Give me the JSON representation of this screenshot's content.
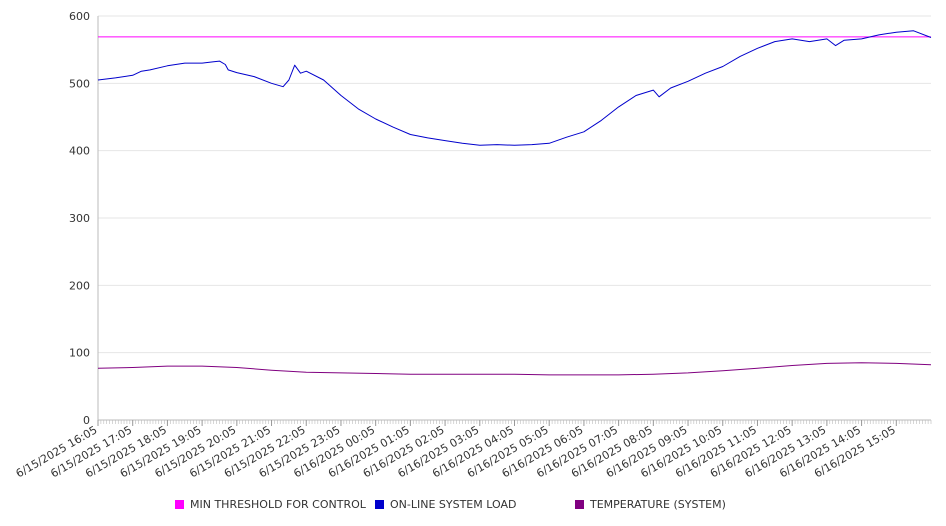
{
  "chart_data": {
    "type": "line",
    "title": "",
    "xlabel": "",
    "ylabel": "",
    "ylim": [
      0,
      600
    ],
    "yticks": [
      0,
      100,
      200,
      300,
      400,
      500,
      600
    ],
    "grid": true,
    "legend_position": "bottom",
    "x_tick_labels": [
      "6/15/2025 16:05",
      "6/15/2025 17:05",
      "6/15/2025 18:05",
      "6/15/2025 19:05",
      "6/15/2025 20:05",
      "6/15/2025 21:05",
      "6/15/2025 22:05",
      "6/15/2025 23:05",
      "6/16/2025 00:05",
      "6/16/2025 01:05",
      "6/16/2025 02:05",
      "6/16/2025 03:05",
      "6/16/2025 04:05",
      "6/16/2025 05:05",
      "6/16/2025 06:05",
      "6/16/2025 07:05",
      "6/16/2025 08:05",
      "6/16/2025 09:05",
      "6/16/2025 10:05",
      "6/16/2025 11:05",
      "6/16/2025 12:05",
      "6/16/2025 13:05",
      "6/16/2025 14:05",
      "6/16/2025 15:05"
    ],
    "x_range": [
      "6/15/2025 16:05",
      "6/16/2025 16:05"
    ],
    "series": [
      {
        "name": "MIN THRESHOLD FOR CONTROL",
        "color": "#ff00ff",
        "points": [
          [
            "6/15/2025 16:05",
            569
          ],
          [
            "6/16/2025 16:05",
            569
          ]
        ]
      },
      {
        "name": "ON-LINE SYSTEM LOAD",
        "color": "#0000cc",
        "points": [
          [
            "6/15/2025 16:05",
            505
          ],
          [
            "6/15/2025 16:35",
            508
          ],
          [
            "6/15/2025 17:05",
            512
          ],
          [
            "6/15/2025 17:20",
            518
          ],
          [
            "6/15/2025 17:35",
            520
          ],
          [
            "6/15/2025 18:05",
            526
          ],
          [
            "6/15/2025 18:35",
            530
          ],
          [
            "6/15/2025 19:05",
            530
          ],
          [
            "6/15/2025 19:25",
            532
          ],
          [
            "6/15/2025 19:35",
            533
          ],
          [
            "6/15/2025 19:45",
            528
          ],
          [
            "6/15/2025 19:50",
            520
          ],
          [
            "6/15/2025 20:05",
            516
          ],
          [
            "6/15/2025 20:35",
            510
          ],
          [
            "6/15/2025 21:05",
            500
          ],
          [
            "6/15/2025 21:25",
            495
          ],
          [
            "6/15/2025 21:35",
            505
          ],
          [
            "6/15/2025 21:45",
            527
          ],
          [
            "6/15/2025 21:55",
            515
          ],
          [
            "6/15/2025 22:05",
            518
          ],
          [
            "6/15/2025 22:35",
            505
          ],
          [
            "6/15/2025 23:05",
            482
          ],
          [
            "6/15/2025 23:35",
            462
          ],
          [
            "6/16/2025 00:05",
            447
          ],
          [
            "6/16/2025 00:35",
            435
          ],
          [
            "6/16/2025 01:05",
            424
          ],
          [
            "6/16/2025 01:35",
            419
          ],
          [
            "6/16/2025 02:05",
            415
          ],
          [
            "6/16/2025 02:35",
            411
          ],
          [
            "6/16/2025 03:05",
            408
          ],
          [
            "6/16/2025 03:35",
            409
          ],
          [
            "6/16/2025 04:05",
            408
          ],
          [
            "6/16/2025 04:35",
            409
          ],
          [
            "6/16/2025 05:05",
            411
          ],
          [
            "6/16/2025 05:35",
            420
          ],
          [
            "6/16/2025 06:05",
            428
          ],
          [
            "6/16/2025 06:35",
            445
          ],
          [
            "6/16/2025 07:05",
            465
          ],
          [
            "6/16/2025 07:35",
            482
          ],
          [
            "6/16/2025 08:05",
            490
          ],
          [
            "6/16/2025 08:15",
            480
          ],
          [
            "6/16/2025 08:35",
            493
          ],
          [
            "6/16/2025 09:05",
            503
          ],
          [
            "6/16/2025 09:35",
            515
          ],
          [
            "6/16/2025 10:05",
            525
          ],
          [
            "6/16/2025 10:35",
            540
          ],
          [
            "6/16/2025 11:05",
            552
          ],
          [
            "6/16/2025 11:35",
            562
          ],
          [
            "6/16/2025 12:05",
            566
          ],
          [
            "6/16/2025 12:35",
            562
          ],
          [
            "6/16/2025 13:05",
            566
          ],
          [
            "6/16/2025 13:20",
            556
          ],
          [
            "6/16/2025 13:35",
            564
          ],
          [
            "6/16/2025 14:05",
            566
          ],
          [
            "6/16/2025 14:35",
            572
          ],
          [
            "6/16/2025 15:05",
            576
          ],
          [
            "6/16/2025 15:35",
            578
          ],
          [
            "6/16/2025 16:05",
            568
          ]
        ]
      },
      {
        "name": "TEMPERATURE (SYSTEM)",
        "color": "#800080",
        "points": [
          [
            "6/15/2025 16:05",
            77
          ],
          [
            "6/15/2025 17:05",
            78
          ],
          [
            "6/15/2025 18:05",
            80
          ],
          [
            "6/15/2025 19:05",
            80
          ],
          [
            "6/15/2025 20:05",
            78
          ],
          [
            "6/15/2025 21:05",
            74
          ],
          [
            "6/15/2025 22:05",
            71
          ],
          [
            "6/15/2025 23:05",
            70
          ],
          [
            "6/16/2025 00:05",
            69
          ],
          [
            "6/16/2025 01:05",
            68
          ],
          [
            "6/16/2025 02:05",
            68
          ],
          [
            "6/16/2025 03:05",
            68
          ],
          [
            "6/16/2025 04:05",
            68
          ],
          [
            "6/16/2025 05:05",
            67
          ],
          [
            "6/16/2025 06:05",
            67
          ],
          [
            "6/16/2025 07:05",
            67
          ],
          [
            "6/16/2025 08:05",
            68
          ],
          [
            "6/16/2025 09:05",
            70
          ],
          [
            "6/16/2025 10:05",
            73
          ],
          [
            "6/16/2025 11:05",
            77
          ],
          [
            "6/16/2025 12:05",
            81
          ],
          [
            "6/16/2025 13:05",
            84
          ],
          [
            "6/16/2025 14:05",
            85
          ],
          [
            "6/16/2025 15:05",
            84
          ],
          [
            "6/16/2025 16:05",
            82
          ]
        ]
      }
    ]
  }
}
